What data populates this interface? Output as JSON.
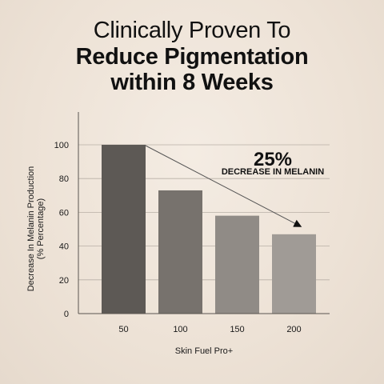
{
  "title_line1": "Clinically Proven To",
  "title_line2": "Reduce Pigmentation",
  "title_line3": "within 8 Weeks",
  "annotation": {
    "value": "25%",
    "text": "DECREASE IN MELANIN"
  },
  "colors": {
    "bars": [
      "#5d5955",
      "#77726d",
      "#908b86",
      "#a09b96"
    ],
    "grid": "#b8afa6",
    "axis": "#5a5550"
  },
  "chart_data": {
    "type": "bar",
    "categories": [
      "50",
      "100",
      "150",
      "200"
    ],
    "values": [
      100,
      73,
      58,
      47
    ],
    "xlabel": "Skin Fuel Pro+",
    "ylabel": "Decrease In Melanin Production\n(% Percentage)",
    "ylim": [
      0,
      100
    ],
    "yticks": [
      0,
      20,
      40,
      60,
      80,
      100
    ],
    "grid": true
  }
}
